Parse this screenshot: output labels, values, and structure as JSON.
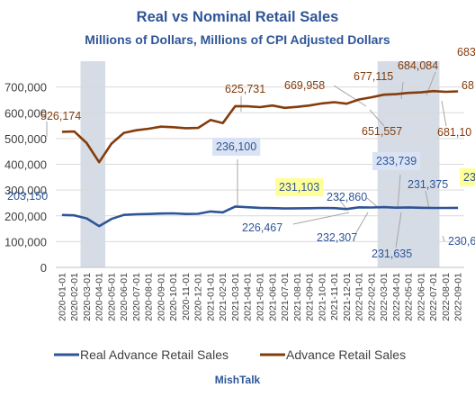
{
  "chart_data": {
    "type": "line",
    "title": "Real vs Nominal Retail Sales",
    "subtitle": "Millions of Dollars, Millions of CPI Adjusted Dollars",
    "xlabel": "",
    "ylabel": "",
    "ylim": [
      0,
      800000
    ],
    "yticks": [
      "0",
      "100,000",
      "200,000",
      "300,000",
      "400,000",
      "500,000",
      "600,000",
      "700,000"
    ],
    "grid": true,
    "legend_position": "bottom",
    "source": "MishTalk",
    "x": [
      "2020-01-01",
      "2020-02-01",
      "2020-03-01",
      "2020-04-01",
      "2020-05-01",
      "2020-06-01",
      "2020-07-01",
      "2020-08-01",
      "2020-09-01",
      "2020-10-01",
      "2020-11-01",
      "2020-12-01",
      "2021-01-01",
      "2021-02-01",
      "2021-03-01",
      "2021-04-01",
      "2021-05-01",
      "2021-06-01",
      "2021-07-01",
      "2021-08-01",
      "2021-09-01",
      "2021-10-01",
      "2021-11-01",
      "2021-12-01",
      "2022-01-01",
      "2022-02-01",
      "2022-03-01",
      "2022-04-01",
      "2022-05-01",
      "2022-06-01",
      "2022-07-01",
      "2022-08-01",
      "2022-09-01"
    ],
    "series": [
      {
        "name": "Real Advance Retail Sales",
        "color": "#2f5597",
        "values": [
          203150,
          202000,
          190000,
          160000,
          188000,
          203500,
          206000,
          207000,
          209000,
          209500,
          207000,
          208000,
          217000,
          213500,
          236100,
          233500,
          231000,
          230000,
          228500,
          229000,
          229500,
          230500,
          230000,
          226467,
          232860,
          232307,
          233739,
          231635,
          232500,
          231375,
          230600,
          230700,
          231000
        ]
      },
      {
        "name": "Advance Retail Sales",
        "color": "#843c0c",
        "values": [
          526174,
          527000,
          482000,
          408000,
          480000,
          522000,
          532000,
          538000,
          546000,
          544000,
          540000,
          541000,
          572000,
          560000,
          625731,
          625000,
          622000,
          628000,
          619000,
          623000,
          628000,
          636000,
          641000,
          635000,
          651557,
          660000,
          669958,
          672000,
          677115,
          679000,
          684084,
          681100,
          683000
        ]
      }
    ],
    "shaded_ranges": [
      [
        2,
        3
      ],
      [
        26,
        30
      ]
    ],
    "annotations": {
      "real": [
        {
          "text": "203,150",
          "i": 0
        },
        {
          "text": "236,100",
          "i": 14
        },
        {
          "text": "226,467",
          "i": 23
        },
        {
          "text": "231,103",
          "i": 23
        },
        {
          "text": "232,860",
          "i": 24
        },
        {
          "text": "232,307",
          "i": 25
        },
        {
          "text": "233,739",
          "i": 26
        },
        {
          "text": "231,635",
          "i": 27
        },
        {
          "text": "231,375",
          "i": 29
        },
        {
          "text": "230,6",
          "i": 30
        },
        {
          "text": "23",
          "i": 32
        }
      ],
      "nominal": [
        {
          "text": "526,174",
          "i": 0
        },
        {
          "text": "625,731",
          "i": 14
        },
        {
          "text": "669,958",
          "i": 23
        },
        {
          "text": "651,557",
          "i": 24
        },
        {
          "text": "677,115",
          "i": 26
        },
        {
          "text": "684,084",
          "i": 28
        },
        {
          "text": "683",
          "i": 32
        },
        {
          "text": "68",
          "i": 32
        },
        {
          "text": "681,10",
          "i": 31
        }
      ]
    }
  }
}
